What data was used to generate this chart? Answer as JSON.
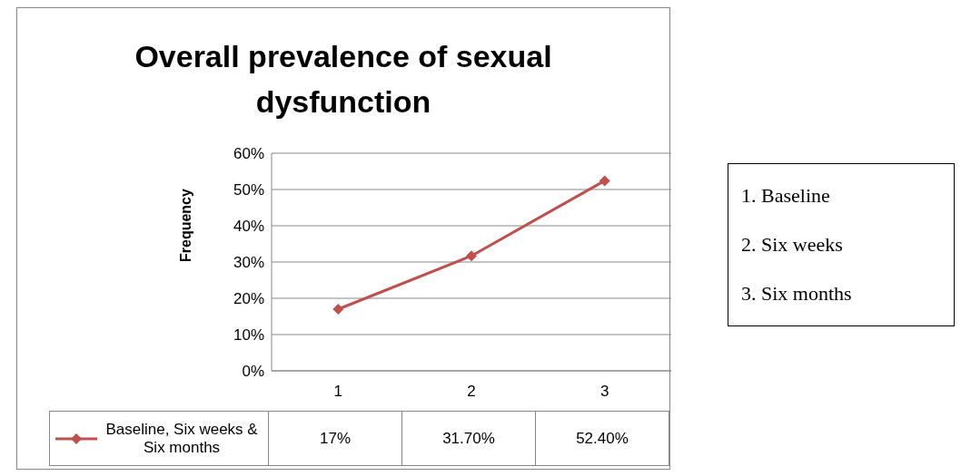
{
  "chart_data": {
    "type": "line",
    "title": "Overall prevalence of sexual dysfunction",
    "ylabel": "Frequency",
    "categories": [
      "1",
      "2",
      "3"
    ],
    "series": [
      {
        "name": "Baseline, Six weeks & Six months",
        "color": "#c0504d",
        "values": [
          17,
          31.7,
          52.4
        ],
        "value_labels": [
          "17%",
          "31.70%",
          "52.40%"
        ]
      }
    ],
    "ylim": [
      0,
      60
    ],
    "yticks": [
      {
        "value": 0,
        "label": "0%"
      },
      {
        "value": 10,
        "label": "10%"
      },
      {
        "value": 20,
        "label": "20%"
      },
      {
        "value": 30,
        "label": "30%"
      },
      {
        "value": 40,
        "label": "40%"
      },
      {
        "value": 50,
        "label": "50%"
      },
      {
        "value": 60,
        "label": "60%"
      }
    ],
    "grid": "y",
    "legend": "bottom",
    "marker": "diamond",
    "line_style": "solid",
    "annotations": [
      "1. Baseline",
      "2. Six weeks",
      "3. Six months"
    ]
  }
}
